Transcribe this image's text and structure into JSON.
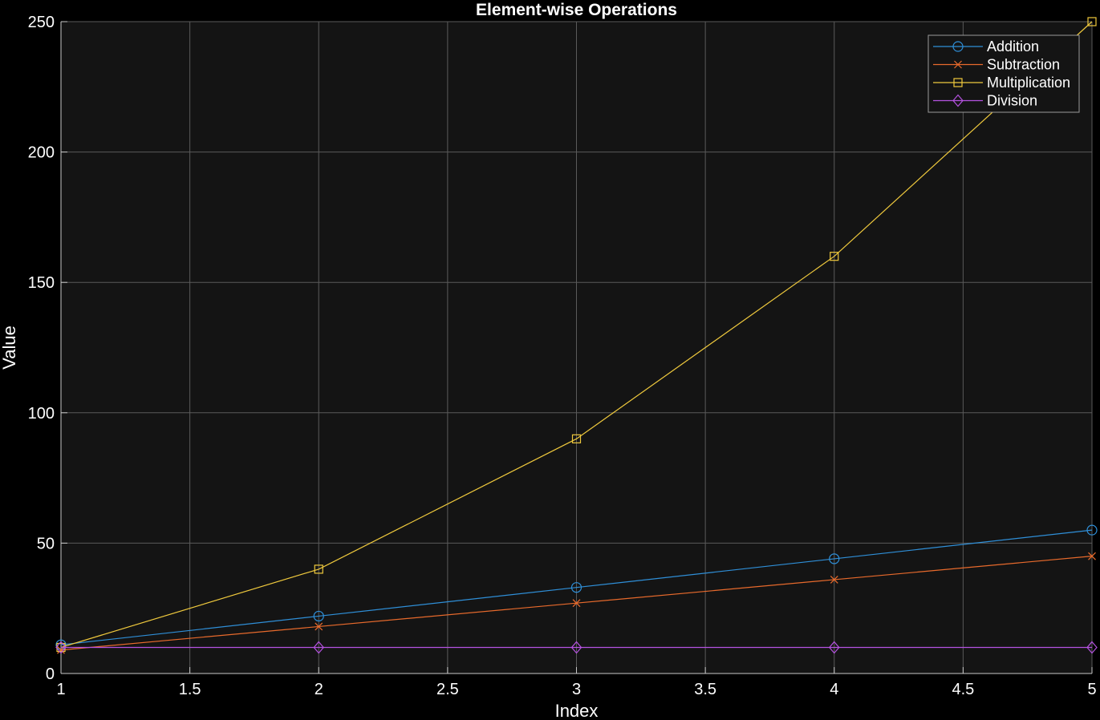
{
  "chart_data": {
    "type": "line",
    "title": "Element-wise Operations",
    "xlabel": "Index",
    "ylabel": "Value",
    "xlim": [
      1,
      5
    ],
    "ylim": [
      0,
      250
    ],
    "xticks": [
      1,
      1.5,
      2,
      2.5,
      3,
      3.5,
      4,
      4.5,
      5
    ],
    "xtick_labels": [
      "1",
      "1.5",
      "2",
      "2.5",
      "3",
      "3.5",
      "4",
      "4.5",
      "5"
    ],
    "yticks": [
      0,
      50,
      100,
      150,
      200,
      250
    ],
    "ytick_labels": [
      "0",
      "50",
      "100",
      "150",
      "200",
      "250"
    ],
    "grid": true,
    "legend_position": "top-right",
    "x": [
      1,
      2,
      3,
      4,
      5
    ],
    "series": [
      {
        "name": "Addition",
        "values": [
          11,
          22,
          33,
          44,
          55
        ],
        "color": "#2f8fd8",
        "marker": "circle"
      },
      {
        "name": "Subtraction",
        "values": [
          9,
          18,
          27,
          36,
          45
        ],
        "color": "#e86a2c",
        "marker": "x"
      },
      {
        "name": "Multiplication",
        "values": [
          10,
          40,
          90,
          160,
          250
        ],
        "color": "#efc93d",
        "marker": "square"
      },
      {
        "name": "Division",
        "values": [
          10,
          10,
          10,
          10,
          10
        ],
        "color": "#b552e0",
        "marker": "diamond"
      }
    ]
  },
  "theme": {
    "figure_background": "#000000",
    "axes_background": "#141414",
    "grid_color": "#5a5a5a",
    "axis_color": "#c8c8c8",
    "text_color": "#ffffff"
  }
}
